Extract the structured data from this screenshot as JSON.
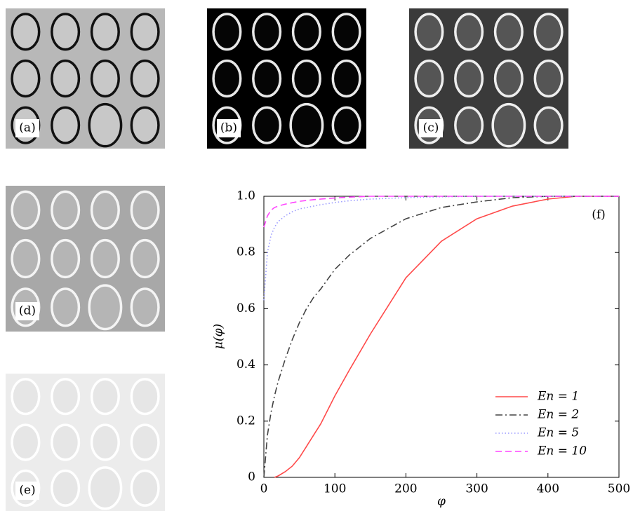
{
  "panels": [
    {
      "label": "(a)"
    },
    {
      "label": "(b)"
    },
    {
      "label": "(c)"
    },
    {
      "label": "(d)"
    },
    {
      "label": "(e)"
    }
  ],
  "chart_data": {
    "type": "line",
    "annotation": "(f)",
    "x_label": "φ",
    "y_label": "μ(φ)",
    "x": [
      0,
      5,
      10,
      15,
      20,
      30,
      40,
      50,
      60,
      70,
      80,
      100,
      120,
      150,
      200,
      250,
      300,
      350,
      400,
      440,
      500
    ],
    "series": [
      {
        "name": "En = 1",
        "color": "#ff4a4a",
        "dash": "solid",
        "values": [
          null,
          null,
          null,
          0,
          0.005,
          0.02,
          0.04,
          0.07,
          0.11,
          0.15,
          0.19,
          0.29,
          0.38,
          0.51,
          0.71,
          0.84,
          0.92,
          0.965,
          0.99,
          1.0,
          1.0
        ]
      },
      {
        "name": "En = 2",
        "color": "#444444",
        "dash": "dashdot",
        "values": [
          0,
          0.15,
          0.23,
          0.29,
          0.34,
          0.42,
          0.49,
          0.55,
          0.6,
          0.64,
          0.67,
          0.74,
          0.79,
          0.85,
          0.92,
          0.96,
          0.98,
          0.995,
          1.0,
          1.0,
          1.0
        ]
      },
      {
        "name": "En = 5",
        "color": "#9a9aff",
        "dash": "dotted",
        "values": [
          0.63,
          0.8,
          0.86,
          0.89,
          0.91,
          0.93,
          0.945,
          0.955,
          0.96,
          0.965,
          0.97,
          0.978,
          0.984,
          0.99,
          0.995,
          0.998,
          1.0,
          1.0,
          1.0,
          1.0,
          1.0
        ]
      },
      {
        "name": "En = 10",
        "color": "#ff44ff",
        "dash": "dashed",
        "values": [
          0.89,
          0.93,
          0.95,
          0.96,
          0.965,
          0.972,
          0.977,
          0.982,
          0.985,
          0.988,
          0.99,
          0.994,
          0.997,
          1.0,
          1.0,
          1.0,
          1.0,
          1.0,
          1.0,
          1.0,
          1.0
        ]
      }
    ],
    "xlim": [
      0,
      500
    ],
    "ylim": [
      0,
      1
    ],
    "xticks": [
      0,
      100,
      200,
      300,
      400,
      500
    ],
    "yticks": [
      0,
      0.2,
      0.4,
      0.6,
      0.8,
      {
        "value": 1,
        "label": "1.0"
      }
    ],
    "legend": "lower right"
  }
}
